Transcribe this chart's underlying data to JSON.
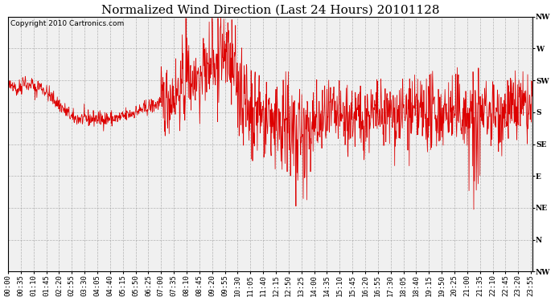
{
  "title": "Normalized Wind Direction (Last 24 Hours) 20101128",
  "copyright": "Copyright 2010 Cartronics.com",
  "background_color": "#ffffff",
  "plot_bg_color": "#f0f0f0",
  "line_color": "#dd0000",
  "grid_color": "#999999",
  "ytick_labels": [
    "NW",
    "W",
    "SW",
    "S",
    "SE",
    "E",
    "NE",
    "N",
    "NW"
  ],
  "ytick_values": [
    8,
    7,
    6,
    5,
    4,
    3,
    2,
    1,
    0
  ],
  "ylim": [
    0,
    8
  ],
  "title_fontsize": 11,
  "copyright_fontsize": 6.5,
  "tick_fontsize": 6.5,
  "figwidth": 6.9,
  "figheight": 3.75,
  "dpi": 100,
  "seed": 42,
  "n_points": 1440,
  "tick_step_min": 35
}
